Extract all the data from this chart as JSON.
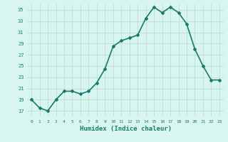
{
  "x": [
    0,
    1,
    2,
    3,
    4,
    5,
    6,
    7,
    8,
    9,
    10,
    11,
    12,
    13,
    14,
    15,
    16,
    17,
    18,
    19,
    20,
    21,
    22,
    23
  ],
  "y": [
    19,
    17.5,
    17,
    19,
    20.5,
    20.5,
    20,
    20.5,
    22,
    24.5,
    28.5,
    29.5,
    30,
    30.5,
    33.5,
    35.5,
    34.5,
    35.5,
    34.5,
    32.5,
    28,
    25,
    22.5,
    22.5
  ],
  "xlabel": "Humidex (Indice chaleur)",
  "ylabel": "",
  "line_color": "#1a7a6e",
  "marker": "D",
  "marker_size": 2,
  "bg_color": "#d8f5f0",
  "grid_color": "#c0ddd8",
  "xlim": [
    -0.5,
    23.5
  ],
  "ylim": [
    16,
    36
  ],
  "yticks": [
    17,
    19,
    21,
    23,
    25,
    27,
    29,
    31,
    33,
    35
  ],
  "xtick_labels": [
    "0",
    "1",
    "2",
    "3",
    "4",
    "5",
    "6",
    "7",
    "8",
    "9",
    "10",
    "11",
    "12",
    "13",
    "14",
    "15",
    "16",
    "17",
    "18",
    "19",
    "20",
    "21",
    "22",
    "23"
  ],
  "linewidth": 1.2
}
